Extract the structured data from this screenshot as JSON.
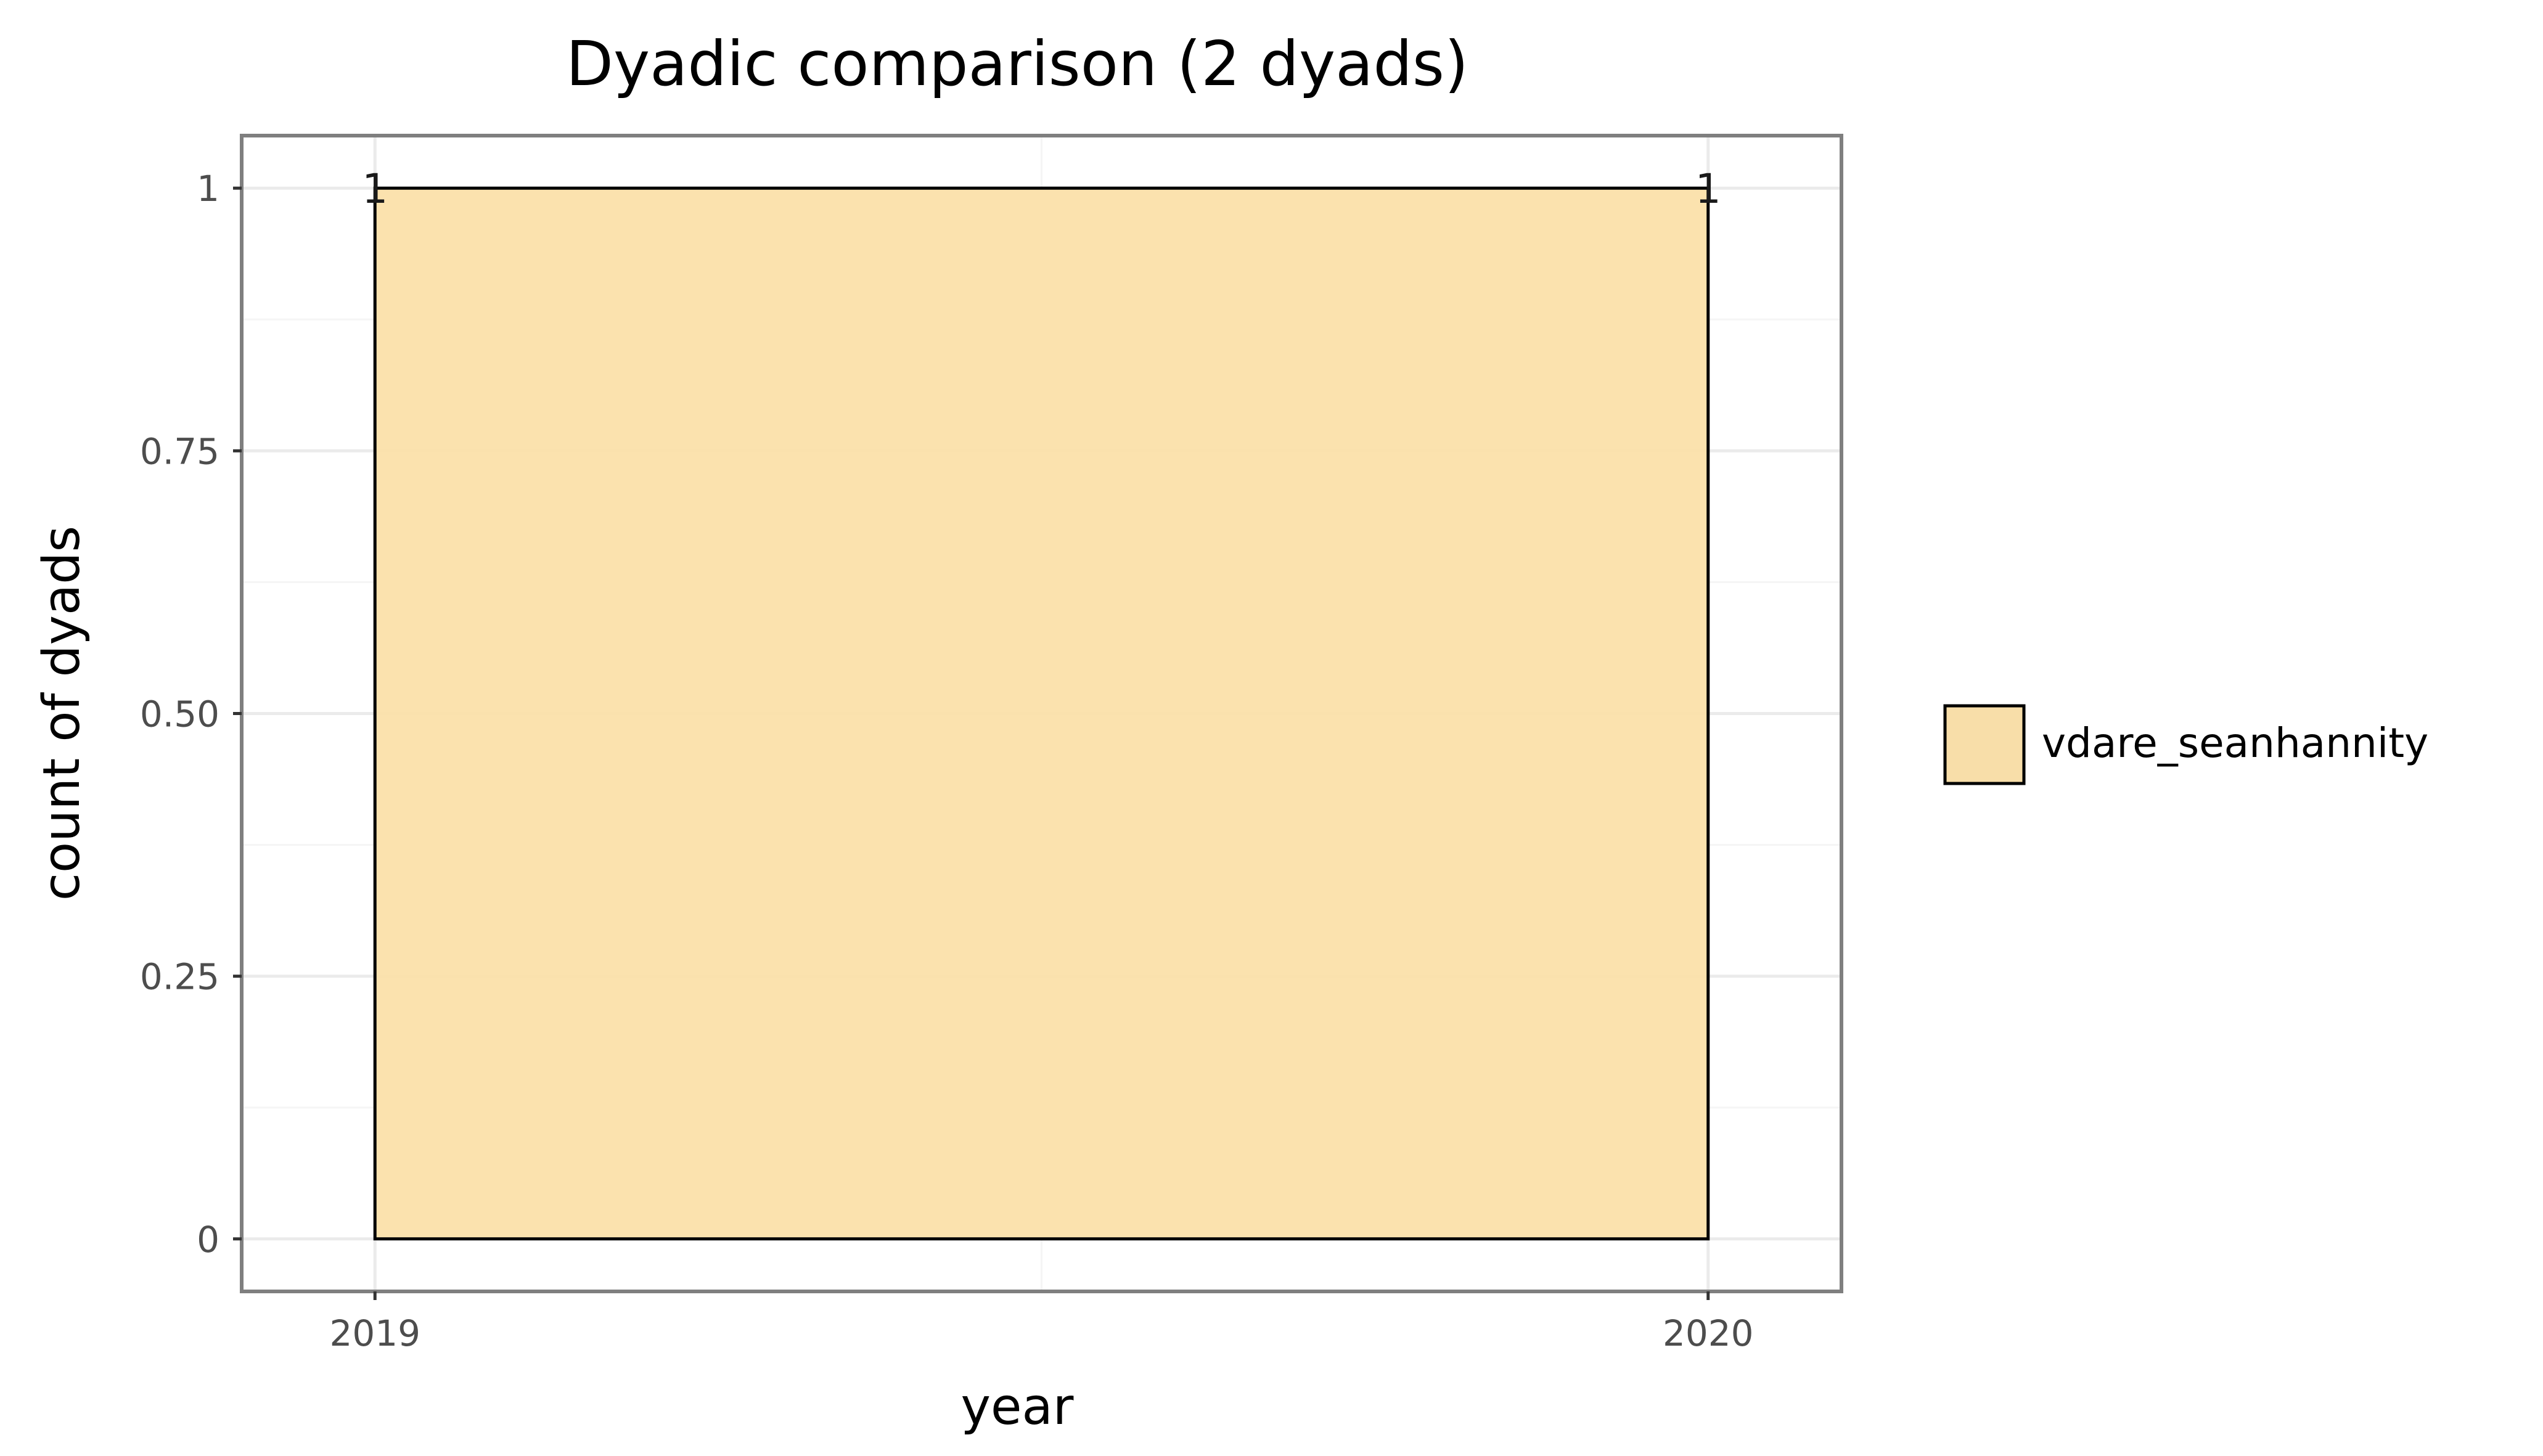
{
  "chart_data": {
    "type": "area",
    "title": "Dyadic comparison (2 dyads)",
    "xlabel": "year",
    "ylabel": "count of dyads",
    "x_ticks": [
      "2019",
      "2020"
    ],
    "y_ticks": [
      "0",
      "0.25",
      "0.50",
      "0.75",
      "1"
    ],
    "y_tick_values": [
      0,
      0.25,
      0.5,
      0.75,
      1
    ],
    "xlim": [
      2018.9,
      2020.1
    ],
    "ylim": [
      -0.05,
      1.05
    ],
    "grid": true,
    "legend_position": "right",
    "series": [
      {
        "name": "vdare_seanhannity",
        "x": [
          2019,
          2020
        ],
        "values": [
          1,
          1
        ],
        "labels": [
          "1",
          "1"
        ],
        "color": "#fbe0a7"
      }
    ]
  },
  "colors": {
    "fill": "#fbe0a7",
    "legend_fill": "#f8dea9",
    "outline": "#000000",
    "grid": "#ebebeb",
    "panel_border": "#7f7f7f"
  }
}
